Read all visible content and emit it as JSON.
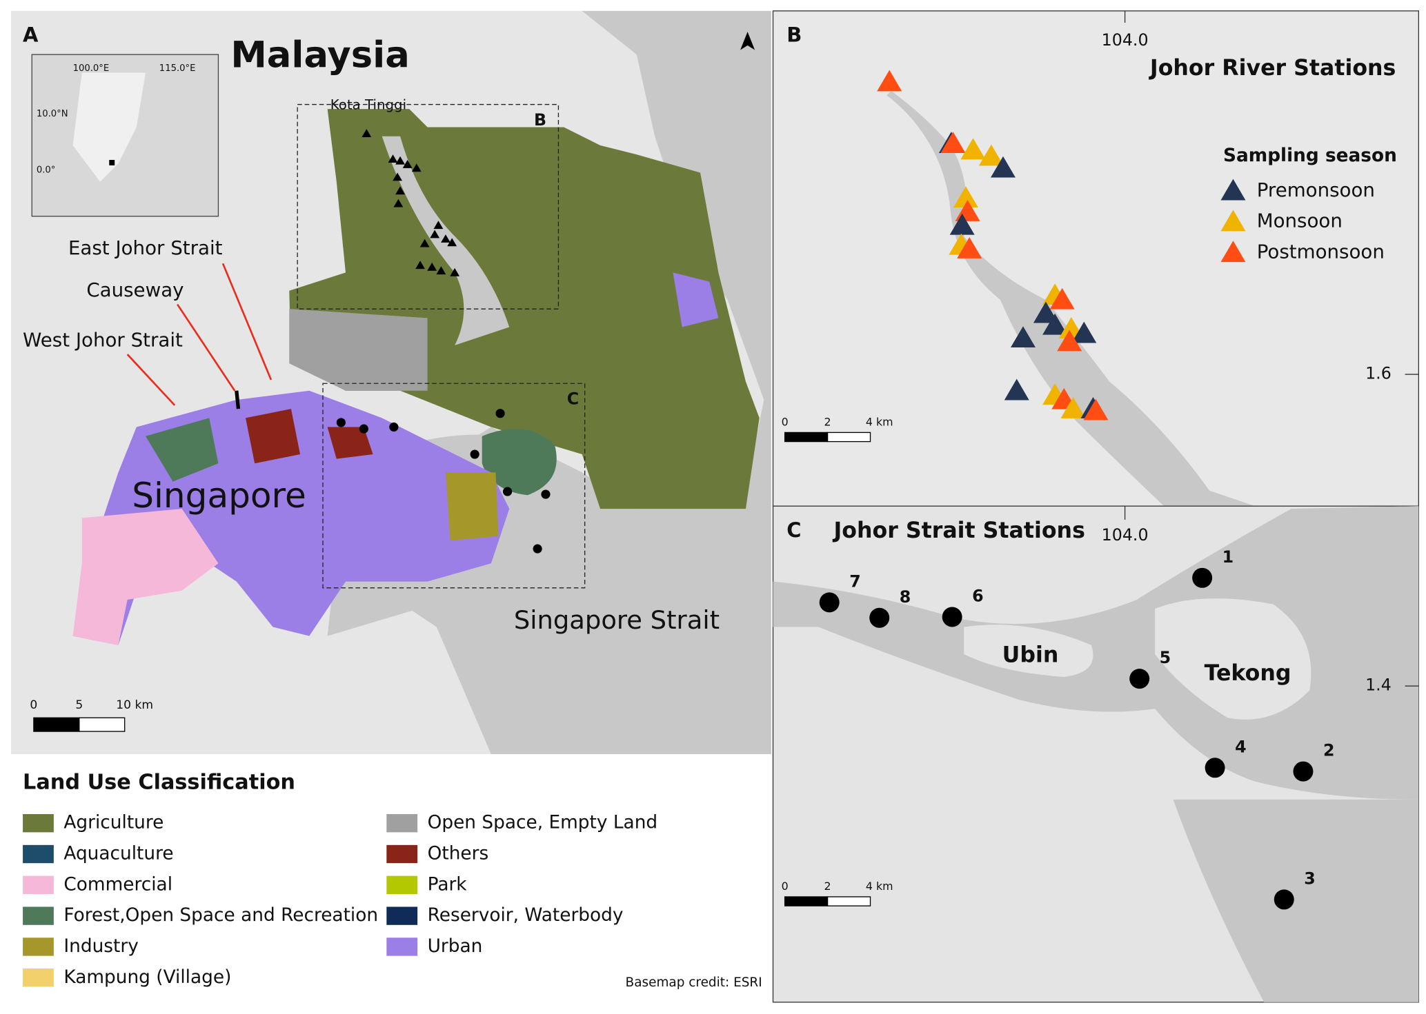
{
  "panel_a": {
    "letter": "A",
    "title": "Malaysia",
    "kota_tinggi": "Kota Tinggi",
    "east_strait": "East Johor Strait",
    "causeway": "Causeway",
    "west_strait": "West Johor Strait",
    "singapore": "Singapore",
    "singapore_strait": "Singapore Strait",
    "inset_x": [
      "100.0°E",
      "115.0°E"
    ],
    "inset_y": [
      "10.0°N",
      "0.0°"
    ],
    "box_b": "B",
    "box_c": "C",
    "scale": [
      "0",
      "5",
      "10 km"
    ]
  },
  "legend": {
    "title": "Land Use Classification",
    "items": [
      {
        "label": "Agriculture",
        "color": "#6b7a3a"
      },
      {
        "label": "Aquaculture",
        "color": "#1e4d6b"
      },
      {
        "label": "Commercial",
        "color": "#f6b8d8"
      },
      {
        "label": "Forest,Open Space and Recreation",
        "color": "#4e7a5a"
      },
      {
        "label": "Industry",
        "color": "#a5972a"
      },
      {
        "label": "Kampung (Village)",
        "color": "#f2d06b"
      },
      {
        "label": "Open Space,  Empty Land",
        "color": "#a0a0a0"
      },
      {
        "label": "Others",
        "color": "#8a2318"
      },
      {
        "label": "Park",
        "color": "#b4c800"
      },
      {
        "label": "Reservoir, Waterbody",
        "color": "#0f2b57"
      },
      {
        "label": "Urban",
        "color": "#9b7fe6"
      }
    ],
    "credit": "Basemap credit: ESRI"
  },
  "panel_b": {
    "letter": "B",
    "title": "Johor River Stations",
    "lon": "104.0",
    "lat": "1.6",
    "legend_title": "Sampling season",
    "seasons": [
      {
        "name": "Premonsoon",
        "color": "#243553"
      },
      {
        "name": "Monsoon",
        "color": "#f0b400"
      },
      {
        "name": "Postmonsoon",
        "color": "#ff4d14"
      }
    ],
    "scale": [
      "0",
      "2",
      "4 km"
    ]
  },
  "panel_c": {
    "letter": "C",
    "title": "Johor Strait Stations",
    "lon": "104.0",
    "lat": "1.4",
    "islands": [
      "Ubin",
      "Tekong"
    ],
    "stations": [
      "1",
      "7",
      "8",
      "6",
      "5",
      "4",
      "2",
      "3"
    ],
    "scale": [
      "0",
      "2",
      "4 km"
    ]
  }
}
